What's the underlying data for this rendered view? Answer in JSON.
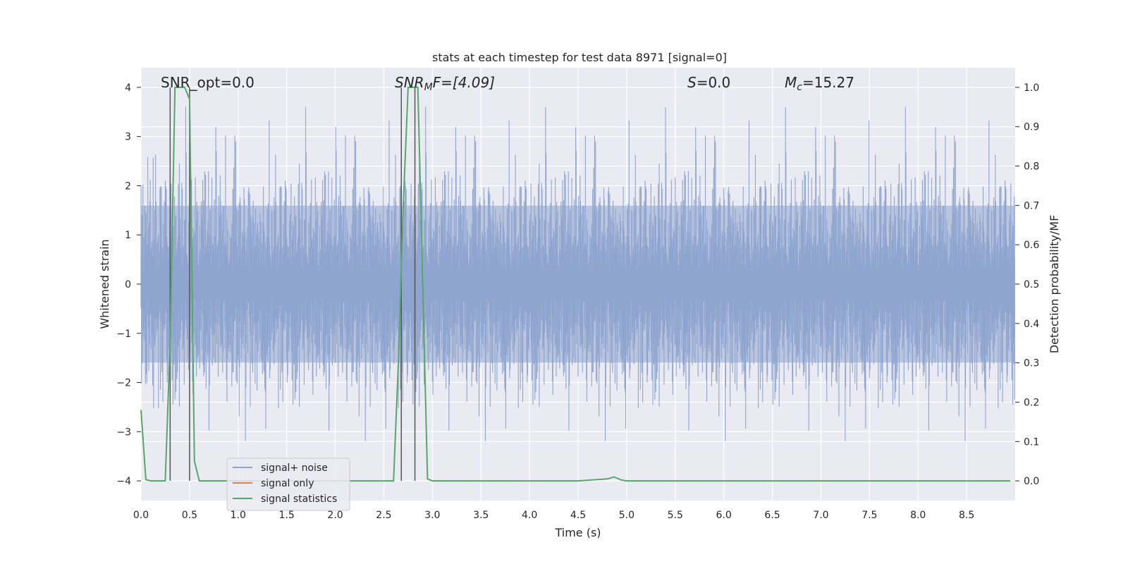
{
  "chart_data": {
    "type": "line",
    "title": "stats at each timestep for test data 8971 [signal=0]",
    "xlabel": "Time (s)",
    "ylabel": "Whitened strain",
    "ylabel_right": "Detection probability/MF",
    "xlim": [
      0,
      9
    ],
    "ylim": [
      -4.4,
      4.4
    ],
    "ylim_right": [
      -0.05,
      1.05
    ],
    "x_ticks": [
      0.0,
      0.5,
      1.0,
      1.5,
      2.0,
      2.5,
      3.0,
      3.5,
      4.0,
      4.5,
      5.0,
      5.5,
      6.0,
      6.5,
      7.0,
      7.5,
      8.0,
      8.5
    ],
    "y_ticks": [
      -4,
      -3,
      -2,
      -1,
      0,
      1,
      2,
      3,
      4
    ],
    "y_ticks_right": [
      0.0,
      0.1,
      0.2,
      0.3,
      0.4,
      0.5,
      0.6,
      0.7,
      0.8,
      0.9,
      1.0
    ],
    "grid": true,
    "legend_position": "lower-left",
    "annotations": {
      "snr_opt": "SNR_opt=0.0",
      "snr_mf_symbol": "SNR",
      "snr_mf_subscript": "M",
      "snr_mf_rest": "F=[4.09]",
      "s_symbol": "S",
      "s_rest": "=0.0",
      "mc_symbol": "M",
      "mc_subscript": "c",
      "mc_rest": "=15.27"
    },
    "vertical_lines_x": [
      0.3,
      0.5,
      2.68,
      2.82
    ],
    "series": [
      {
        "name": "signal+ noise",
        "color": "#8fa5cf",
        "description_axis": "left",
        "noise_band_sigma": 1.0,
        "samples": 1800
      },
      {
        "name": "signal only",
        "color": "#dd8452",
        "axis": "left",
        "x": [],
        "y": []
      },
      {
        "name": "signal statistics",
        "color": "#55a868",
        "axis": "right",
        "x": [
          0.0,
          0.05,
          0.1,
          0.15,
          0.2,
          0.25,
          0.3,
          0.35,
          0.4,
          0.45,
          0.5,
          0.55,
          0.6,
          0.7,
          1.0,
          1.5,
          2.0,
          2.5,
          2.6,
          2.65,
          2.7,
          2.75,
          2.8,
          2.85,
          2.9,
          2.95,
          3.0,
          3.5,
          4.0,
          4.5,
          4.8,
          4.87,
          4.95,
          5.0,
          5.5,
          6.0,
          7.0,
          8.0,
          8.95
        ],
        "y": [
          0.18,
          0.003,
          0.0,
          0.0,
          0.0,
          0.0,
          0.35,
          1.0,
          1.0,
          1.0,
          0.97,
          0.05,
          0.0,
          0.0,
          0.0,
          0.0,
          0.0,
          0.0,
          0.0,
          0.3,
          0.7,
          1.0,
          1.0,
          1.0,
          0.5,
          0.005,
          0.0,
          0.0,
          0.0,
          0.0,
          0.005,
          0.01,
          0.002,
          0.0,
          0.0,
          0.0,
          0.0,
          0.0,
          0.0
        ]
      }
    ]
  }
}
